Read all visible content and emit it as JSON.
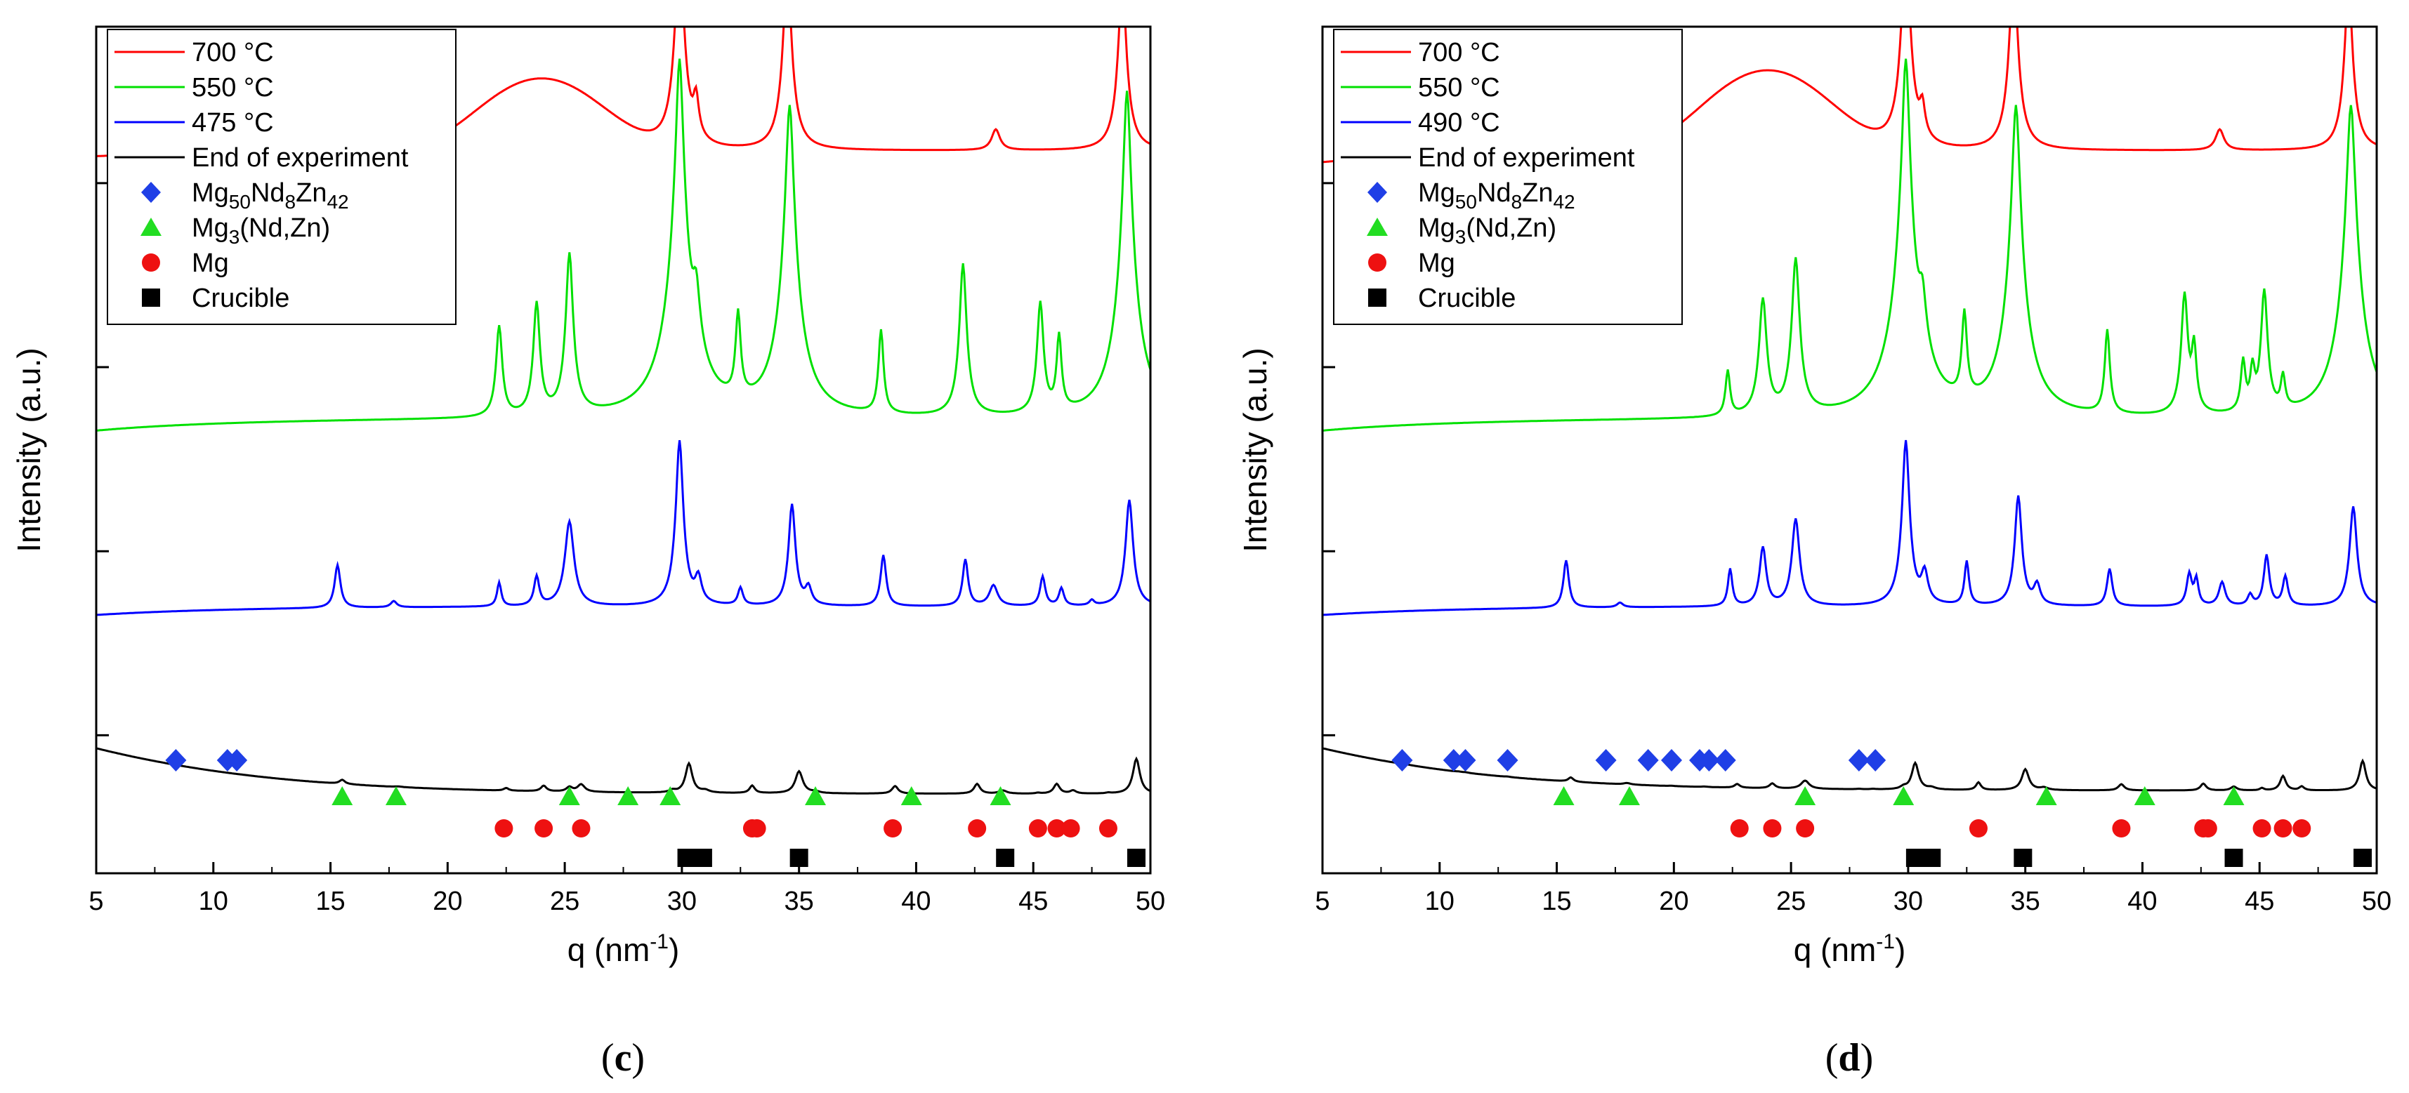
{
  "figure": {
    "panels": [
      "c",
      "d"
    ]
  },
  "chart_data": [
    {
      "type": "line",
      "panel_label": "c",
      "xlabel": "q (nm",
      "xlabel_sup": "-1",
      "xlabel_end": ")",
      "ylabel": "Intensity (a.u.)",
      "xlim": [
        5,
        50
      ],
      "x_ticks": [
        5,
        10,
        15,
        20,
        25,
        30,
        35,
        40,
        45,
        50
      ],
      "y_scale": "log (stacked, offset)",
      "colors": {
        "red": "#ff0000",
        "green": "#00e000",
        "blue": "#0000ff",
        "black": "#000000",
        "diamond": "#1f3fe6",
        "triangle": "#22dd22",
        "circle": "#ee1111",
        "square": "#000000"
      },
      "series": [
        {
          "name": "700 °C",
          "color": "#ff0000",
          "baseline": 150,
          "start": 140,
          "bump": {
            "center": 24,
            "width": 2.2,
            "amp": 220
          },
          "peaks": [
            [
              29.9,
              14,
              0.12
            ],
            [
              30.6,
              0.8,
              0.12
            ],
            [
              34.5,
              9,
              0.13
            ],
            [
              48.8,
              7.5,
              0.13
            ],
            [
              43.4,
              0.3,
              0.2
            ]
          ]
        },
        {
          "name": "550 °C",
          "color": "#00e000",
          "baseline": 5.2,
          "start": 4.5,
          "bump": null,
          "peaks": [
            [
              22.2,
              2.2,
              0.12
            ],
            [
              23.8,
              3.3,
              0.12
            ],
            [
              25.2,
              7,
              0.12
            ],
            [
              29.9,
              90,
              0.12
            ],
            [
              30.6,
              3,
              0.15
            ],
            [
              32.4,
              2.6,
              0.1
            ],
            [
              34.6,
              50,
              0.13
            ],
            [
              38.5,
              2.0,
              0.1
            ],
            [
              42.0,
              6,
              0.12
            ],
            [
              45.3,
              3.3,
              0.12
            ],
            [
              46.1,
              1.8,
              0.1
            ],
            [
              49.0,
              60,
              0.12
            ]
          ]
        },
        {
          "name": "475 °C",
          "color": "#0000ff",
          "baseline": 0.5,
          "start": 0.45,
          "bump": null,
          "peaks": [
            [
              15.3,
              0.7,
              0.13
            ],
            [
              17.7,
              0.08,
              0.15
            ],
            [
              22.2,
              0.35,
              0.1
            ],
            [
              23.8,
              0.45,
              0.12
            ],
            [
              25.2,
              1.9,
              0.18
            ],
            [
              29.9,
              7,
              0.12
            ],
            [
              30.7,
              0.4,
              0.15
            ],
            [
              32.5,
              0.25,
              0.12
            ],
            [
              34.7,
              2.6,
              0.13
            ],
            [
              35.4,
              0.25,
              0.15
            ],
            [
              38.6,
              0.9,
              0.12
            ],
            [
              42.1,
              0.8,
              0.12
            ],
            [
              43.3,
              0.3,
              0.2
            ],
            [
              45.4,
              0.45,
              0.12
            ],
            [
              46.2,
              0.25,
              0.12
            ],
            [
              47.5,
              0.07,
              0.12
            ],
            [
              49.1,
              2.8,
              0.14
            ]
          ]
        },
        {
          "name": "End of experiment",
          "color": "#000000",
          "baseline": 0.048,
          "start": 0.085,
          "bump": null,
          "peaks": [
            [
              15.5,
              0.06,
              0.14
            ],
            [
              17.9,
              0.008,
              0.2
            ],
            [
              22.5,
              0.035,
              0.12
            ],
            [
              24.1,
              0.075,
              0.14
            ],
            [
              25.2,
              0.06,
              0.15
            ],
            [
              25.7,
              0.1,
              0.18
            ],
            [
              29.6,
              0.03,
              0.15
            ],
            [
              30.3,
              0.45,
              0.16
            ],
            [
              31.0,
              0.03,
              0.2
            ],
            [
              33.0,
              0.1,
              0.13
            ],
            [
              35.0,
              0.32,
              0.18
            ],
            [
              35.7,
              0.02,
              0.2
            ],
            [
              39.1,
              0.1,
              0.15
            ],
            [
              42.6,
              0.13,
              0.15
            ],
            [
              43.7,
              0.04,
              0.2
            ],
            [
              45.2,
              0.01,
              0.12
            ],
            [
              46.0,
              0.13,
              0.15
            ],
            [
              46.7,
              0.04,
              0.15
            ],
            [
              48.2,
              0.01,
              0.12
            ],
            [
              49.4,
              0.55,
              0.16
            ]
          ]
        }
      ],
      "legend": [
        {
          "label": "700 °C",
          "kind": "line",
          "color": "#ff0000"
        },
        {
          "label": "550 °C",
          "kind": "line",
          "color": "#00e000"
        },
        {
          "label": "475 °C",
          "kind": "line",
          "color": "#0000ff"
        },
        {
          "label": "End of experiment",
          "kind": "line",
          "color": "#000000"
        },
        {
          "label": "Mg",
          "sub1": "50",
          "mid1": "Nd",
          "sub2": "8",
          "mid2": "Zn",
          "sub3": "42",
          "kind": "diamond",
          "color": "#1f3fe6"
        },
        {
          "label": "Mg",
          "sub1": "3",
          "mid1": "(Nd,Zn)",
          "kind": "triangle",
          "color": "#22dd22"
        },
        {
          "label": "Mg",
          "kind": "circle",
          "color": "#ee1111"
        },
        {
          "label": "Crucible",
          "kind": "square",
          "color": "#000000"
        }
      ],
      "markers": {
        "diamond": [
          8.4,
          10.6,
          11.0
        ],
        "triangle": [
          15.5,
          17.8,
          25.2,
          27.7,
          29.5,
          35.7,
          39.8,
          43.6
        ],
        "circle": [
          22.4,
          24.1,
          25.7,
          33.0,
          33.2,
          39.0,
          42.6,
          45.2,
          46.0,
          46.6,
          48.2
        ],
        "square": [
          30.2,
          30.9,
          35.0,
          43.8,
          49.4
        ]
      }
    },
    {
      "type": "line",
      "panel_label": "d",
      "xlabel": "q (nm",
      "xlabel_sup": "-1",
      "xlabel_end": ")",
      "ylabel": "Intensity (a.u.)",
      "xlim": [
        5,
        50
      ],
      "x_ticks": [
        5,
        10,
        15,
        20,
        25,
        30,
        35,
        40,
        45,
        50
      ],
      "y_scale": "log (stacked, offset)",
      "colors": {
        "red": "#ff0000",
        "green": "#00e000",
        "blue": "#0000ff",
        "black": "#000000",
        "diamond": "#1f3fe6",
        "triangle": "#22dd22",
        "circle": "#ee1111",
        "square": "#000000"
      },
      "series": [
        {
          "name": "700 °C",
          "color": "#ff0000",
          "baseline": 150,
          "start": 130,
          "bump": {
            "center": 24,
            "width": 2.2,
            "amp": 260
          },
          "peaks": [
            [
              29.9,
              14,
              0.12
            ],
            [
              30.6,
              0.6,
              0.12
            ],
            [
              34.5,
              9,
              0.13
            ],
            [
              48.8,
              7,
              0.13
            ],
            [
              43.3,
              0.3,
              0.2
            ]
          ]
        },
        {
          "name": "550 °C",
          "color": "#00e000",
          "baseline": 5.2,
          "start": 4.5,
          "bump": null,
          "peaks": [
            [
              22.3,
              0.8,
              0.1
            ],
            [
              23.8,
              3.5,
              0.14
            ],
            [
              25.2,
              6.5,
              0.13
            ],
            [
              29.9,
              90,
              0.12
            ],
            [
              30.6,
              2.5,
              0.15
            ],
            [
              32.4,
              2.6,
              0.1
            ],
            [
              34.6,
              50,
              0.13
            ],
            [
              38.5,
              2.0,
              0.1
            ],
            [
              41.8,
              3.8,
              0.12
            ],
            [
              42.2,
              1.5,
              0.1
            ],
            [
              44.3,
              1.0,
              0.1
            ],
            [
              44.7,
              0.8,
              0.1
            ],
            [
              45.2,
              4.0,
              0.12
            ],
            [
              46.0,
              0.6,
              0.1
            ],
            [
              48.9,
              50,
              0.14
            ]
          ]
        },
        {
          "name": "490 °C",
          "color": "#0000ff",
          "baseline": 0.5,
          "start": 0.45,
          "bump": null,
          "peaks": [
            [
              15.4,
              0.8,
              0.12
            ],
            [
              17.7,
              0.06,
              0.15
            ],
            [
              22.4,
              0.6,
              0.1
            ],
            [
              23.8,
              1.1,
              0.14
            ],
            [
              25.2,
              2.0,
              0.15
            ],
            [
              29.9,
              7,
              0.12
            ],
            [
              30.7,
              0.5,
              0.15
            ],
            [
              32.5,
              0.75,
              0.1
            ],
            [
              34.7,
              3,
              0.13
            ],
            [
              35.5,
              0.3,
              0.15
            ],
            [
              38.6,
              0.6,
              0.12
            ],
            [
              42.0,
              0.5,
              0.12
            ],
            [
              42.3,
              0.4,
              0.1
            ],
            [
              43.4,
              0.35,
              0.15
            ],
            [
              44.6,
              0.15,
              0.12
            ],
            [
              45.3,
              0.9,
              0.12
            ],
            [
              46.1,
              0.45,
              0.12
            ],
            [
              49.0,
              2.5,
              0.14
            ]
          ]
        },
        {
          "name": "End of experiment",
          "color": "#000000",
          "baseline": 0.05,
          "start": 0.085,
          "bump": null,
          "peaks": [
            [
              8.5,
              0.012,
              0.15
            ],
            [
              10.8,
              0.006,
              0.12
            ],
            [
              11.1,
              0.007,
              0.12
            ],
            [
              12.9,
              0.006,
              0.12
            ],
            [
              15.6,
              0.06,
              0.13
            ],
            [
              18.0,
              0.02,
              0.18
            ],
            [
              19.9,
              0.004,
              0.15
            ],
            [
              21.3,
              0.006,
              0.15
            ],
            [
              22.7,
              0.05,
              0.13
            ],
            [
              24.2,
              0.065,
              0.14
            ],
            [
              25.6,
              0.11,
              0.2
            ],
            [
              27.9,
              0.006,
              0.12
            ],
            [
              28.5,
              0.006,
              0.12
            ],
            [
              29.8,
              0.03,
              0.15
            ],
            [
              30.3,
              0.4,
              0.16
            ],
            [
              31.0,
              0.025,
              0.2
            ],
            [
              33.0,
              0.1,
              0.12
            ],
            [
              35.0,
              0.3,
              0.17
            ],
            [
              35.8,
              0.03,
              0.2
            ],
            [
              39.1,
              0.08,
              0.15
            ],
            [
              42.6,
              0.09,
              0.14
            ],
            [
              43.9,
              0.05,
              0.15
            ],
            [
              45.1,
              0.03,
              0.1
            ],
            [
              46.0,
              0.2,
              0.14
            ],
            [
              46.8,
              0.05,
              0.12
            ],
            [
              49.4,
              0.45,
              0.15
            ]
          ]
        }
      ],
      "legend": [
        {
          "label": "700 °C",
          "kind": "line",
          "color": "#ff0000"
        },
        {
          "label": "550 °C",
          "kind": "line",
          "color": "#00e000"
        },
        {
          "label": "490 °C",
          "kind": "line",
          "color": "#0000ff"
        },
        {
          "label": "End of experiment",
          "kind": "line",
          "color": "#000000"
        },
        {
          "label": "Mg",
          "sub1": "50",
          "mid1": "Nd",
          "sub2": "8",
          "mid2": "Zn",
          "sub3": "42",
          "kind": "diamond",
          "color": "#1f3fe6"
        },
        {
          "label": "Mg",
          "sub1": "3",
          "mid1": "(Nd,Zn)",
          "kind": "triangle",
          "color": "#22dd22"
        },
        {
          "label": "Mg",
          "kind": "circle",
          "color": "#ee1111"
        },
        {
          "label": "Crucible",
          "kind": "square",
          "color": "#000000"
        }
      ],
      "markers": {
        "diamond": [
          8.4,
          10.6,
          11.1,
          12.9,
          17.1,
          18.9,
          19.9,
          21.1,
          21.5,
          22.2,
          27.9,
          28.6
        ],
        "triangle": [
          15.3,
          18.1,
          25.6,
          29.8,
          35.9,
          40.1,
          43.9
        ],
        "circle": [
          22.8,
          24.2,
          25.6,
          33.0,
          39.1,
          42.6,
          42.8,
          45.1,
          46.0,
          46.8
        ],
        "square": [
          30.3,
          31.0,
          34.9,
          43.9,
          49.4
        ]
      }
    }
  ]
}
